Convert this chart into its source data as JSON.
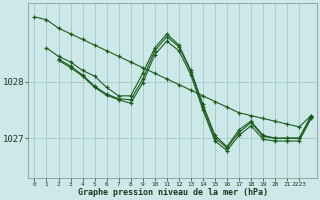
{
  "title": "Graphe pression niveau de la mer (hPa)",
  "background_color": "#cce8e8",
  "grid_color": "#aacccc",
  "line_color": "#1a5c1a",
  "xlim": [
    -0.5,
    23.5
  ],
  "ylim": [
    1026.3,
    1029.4
  ],
  "yticks": [
    1027,
    1028
  ],
  "xtick_labels": [
    "0",
    "1",
    "2",
    "3",
    "4",
    "5",
    "6",
    "7",
    "8",
    "9",
    "10",
    "11",
    "12",
    "13",
    "14",
    "15",
    "16",
    "17",
    "18",
    "19",
    "20",
    "21",
    "2223"
  ],
  "xticks": [
    0,
    1,
    2,
    3,
    4,
    5,
    6,
    7,
    8,
    9,
    10,
    11,
    12,
    13,
    14,
    15,
    16,
    17,
    18,
    19,
    20,
    21,
    22
  ],
  "series": [
    {
      "x": [
        0,
        1,
        2,
        3,
        4,
        5,
        6,
        7,
        8,
        9,
        10,
        11,
        12,
        13,
        14,
        15,
        16,
        17,
        18,
        19,
        20,
        21,
        22,
        23
      ],
      "y": [
        1029.15,
        1029.1,
        1028.95,
        1028.85,
        1028.75,
        1028.65,
        1028.55,
        1028.45,
        1028.35,
        1028.25,
        1028.15,
        1028.05,
        1027.95,
        1027.85,
        1027.75,
        1027.65,
        1027.55,
        1027.45,
        1027.4,
        1027.35,
        1027.3,
        1027.25,
        1027.2,
        1027.4
      ]
    },
    {
      "x": [
        1,
        2,
        3,
        4,
        5,
        6,
        7,
        8,
        9,
        10,
        11,
        12,
        13,
        14,
        15,
        16,
        17,
        18,
        19,
        20,
        21,
        22,
        23
      ],
      "y": [
        1028.6,
        1028.45,
        1028.35,
        1028.2,
        1028.1,
        1027.9,
        1027.75,
        1027.75,
        1028.15,
        1028.6,
        1028.85,
        1028.65,
        1028.2,
        1027.6,
        1027.05,
        1026.85,
        1027.15,
        1027.3,
        1027.05,
        1027.0,
        1027.0,
        1027.0,
        1027.4
      ]
    },
    {
      "x": [
        2,
        3,
        4,
        5,
        6,
        7,
        8,
        9,
        10,
        11,
        12,
        13,
        14,
        15,
        16,
        17,
        18,
        19,
        20,
        21,
        22,
        23
      ],
      "y": [
        1028.4,
        1028.28,
        1028.12,
        1027.92,
        1027.78,
        1027.7,
        1027.68,
        1028.05,
        1028.55,
        1028.8,
        1028.62,
        1028.18,
        1027.55,
        1027.0,
        1026.83,
        1027.1,
        1027.28,
        1027.03,
        1027.0,
        1027.0,
        1027.0,
        1027.38
      ]
    },
    {
      "x": [
        2,
        3,
        4,
        5,
        6,
        7,
        8,
        9,
        10,
        11,
        12,
        13,
        14,
        15,
        16,
        17,
        18,
        19,
        20,
        21,
        22,
        23
      ],
      "y": [
        1028.38,
        1028.25,
        1028.1,
        1027.9,
        1027.76,
        1027.68,
        1027.62,
        1027.98,
        1028.48,
        1028.72,
        1028.55,
        1028.12,
        1027.5,
        1026.95,
        1026.78,
        1027.05,
        1027.22,
        1026.98,
        1026.95,
        1026.95,
        1026.95,
        1027.35
      ]
    }
  ]
}
